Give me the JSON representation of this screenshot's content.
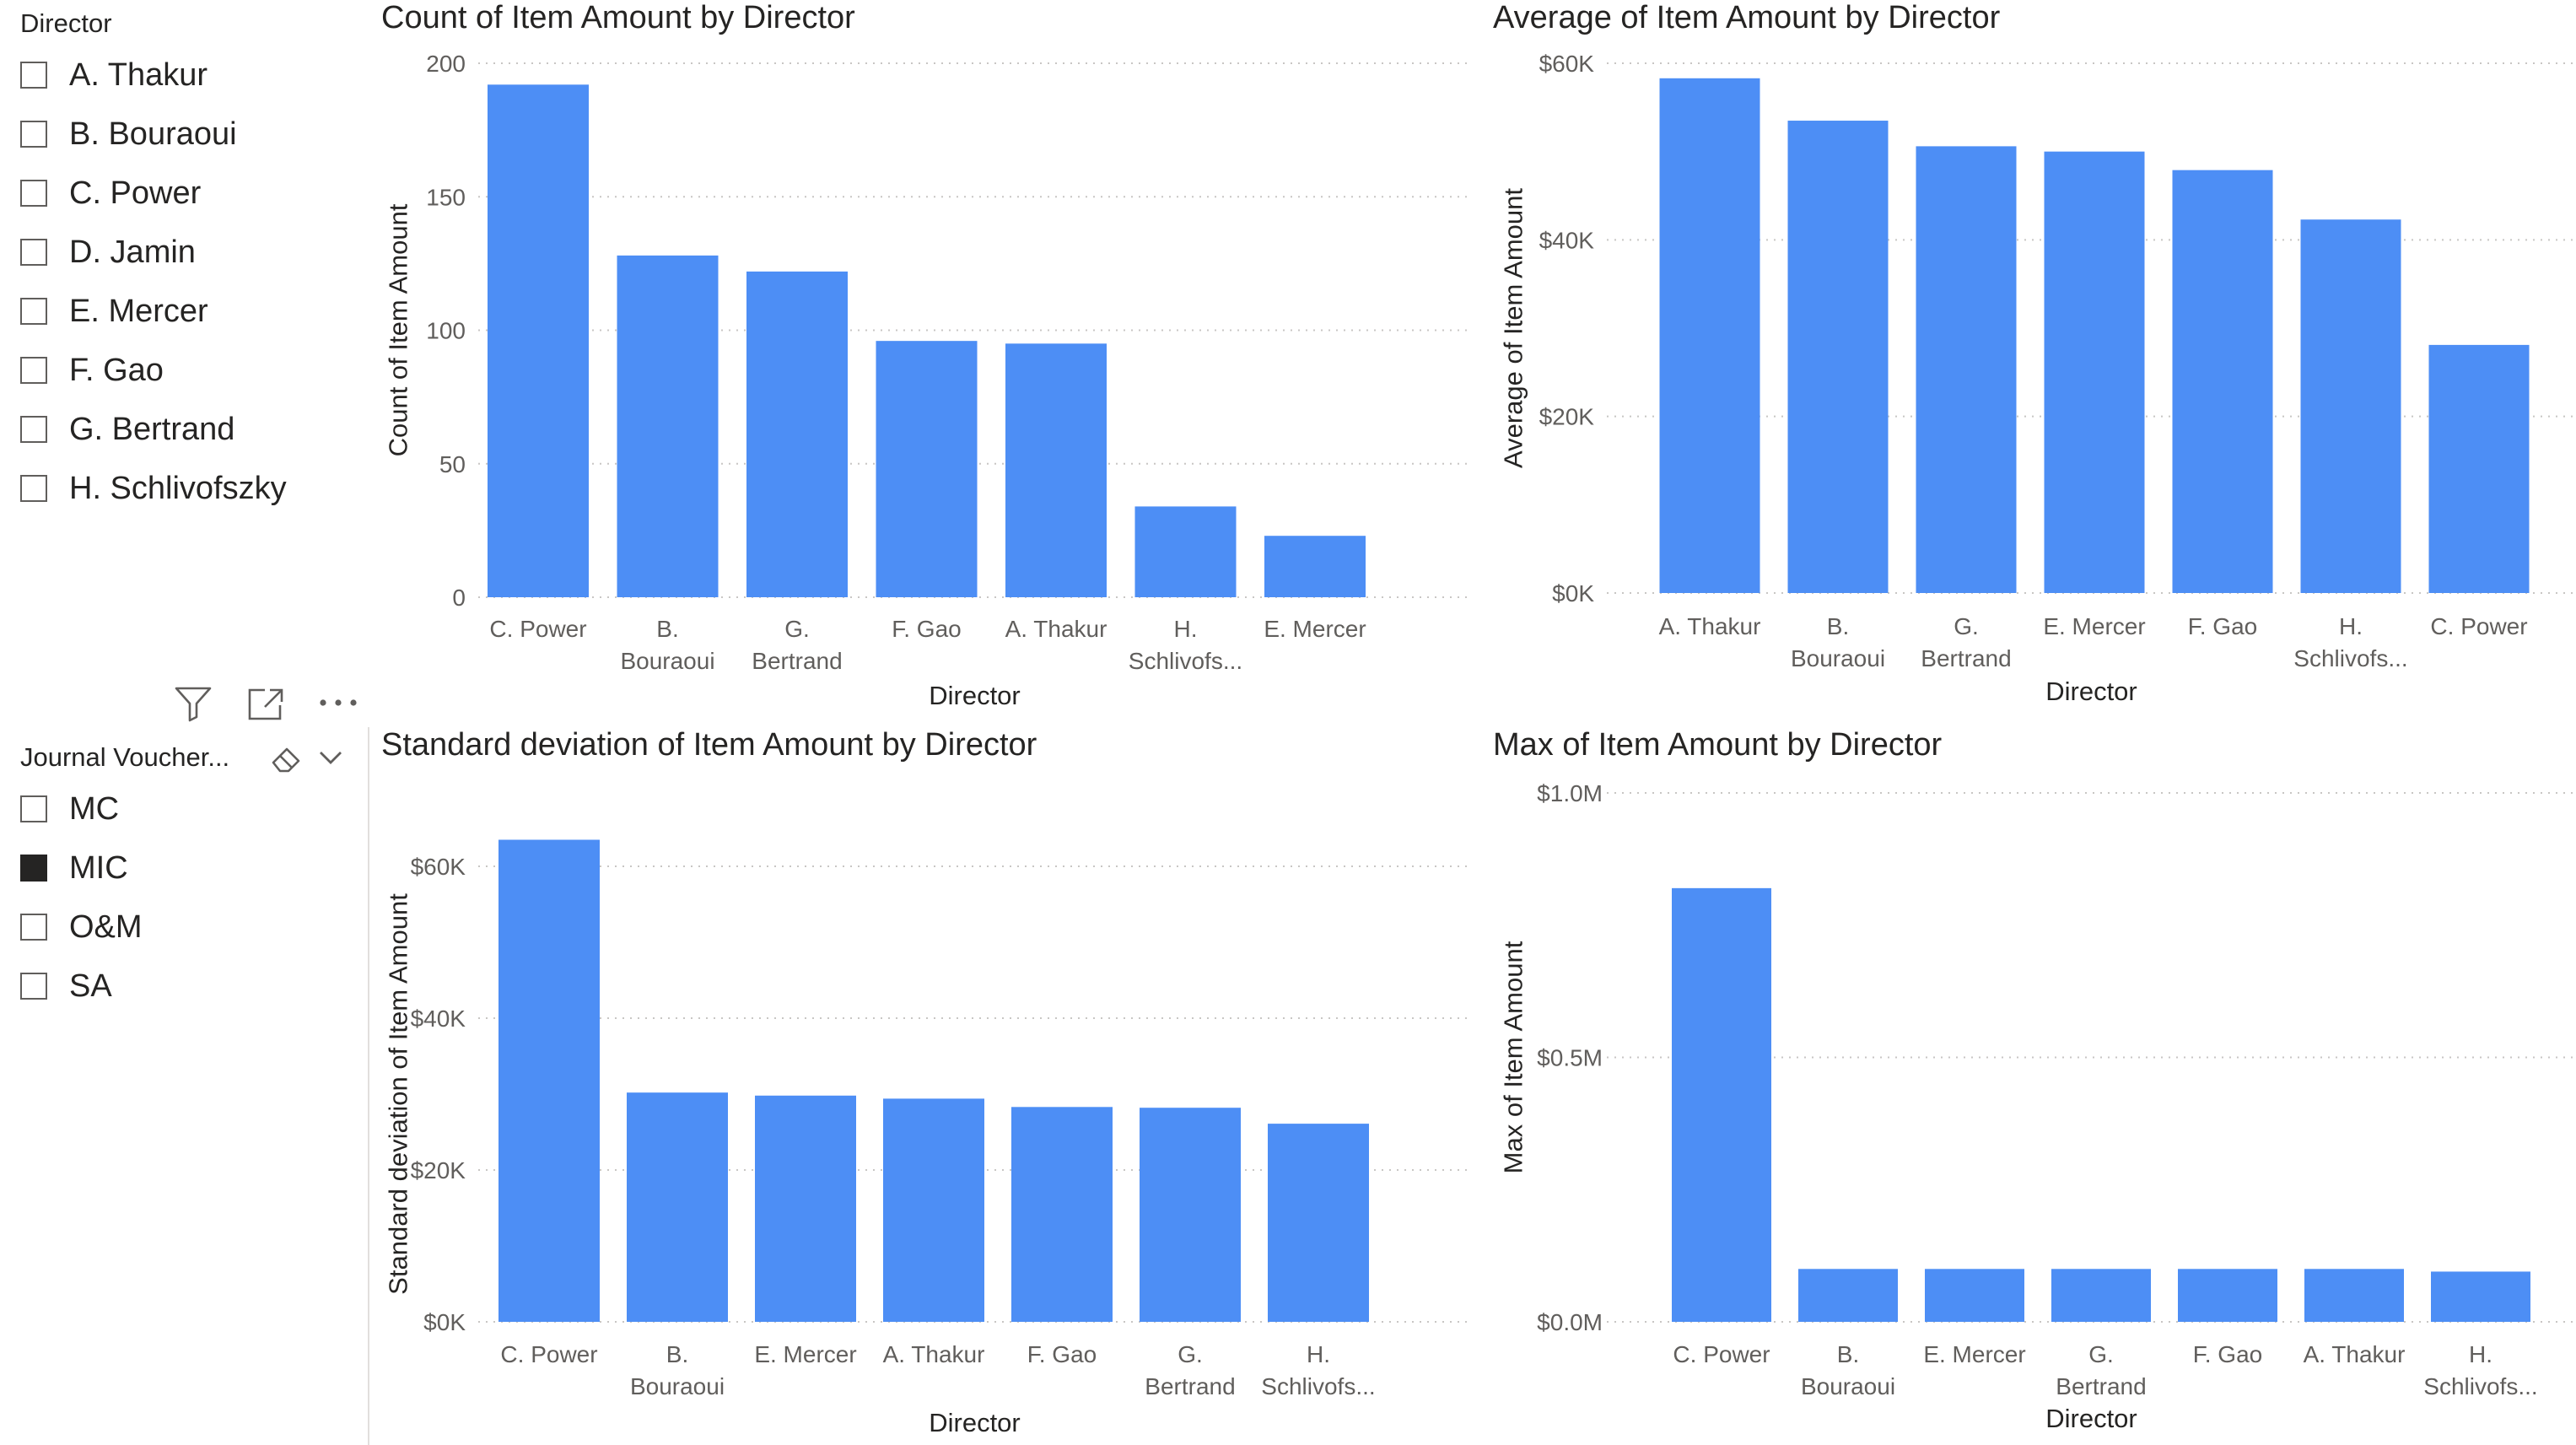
{
  "director_slicer": {
    "title": "Director",
    "items": [
      {
        "label": "A. Thakur",
        "checked": false
      },
      {
        "label": "B. Bouraoui",
        "checked": false
      },
      {
        "label": "C. Power",
        "checked": false
      },
      {
        "label": "D. Jamin",
        "checked": false
      },
      {
        "label": "E. Mercer",
        "checked": false
      },
      {
        "label": "F. Gao",
        "checked": false
      },
      {
        "label": "G. Bertrand",
        "checked": false
      },
      {
        "label": "H. Schlivofszky",
        "checked": false
      }
    ]
  },
  "visual_toolbar": {
    "icons": [
      "filter-icon",
      "focus-mode-icon",
      "more-options-icon"
    ]
  },
  "journal_slicer": {
    "title": "Journal Voucher...",
    "icons": [
      "eraser-icon",
      "chevron-down-icon"
    ],
    "items": [
      {
        "label": "MC",
        "checked": false
      },
      {
        "label": "MIC",
        "checked": true
      },
      {
        "label": "O&M",
        "checked": false
      },
      {
        "label": "SA",
        "checked": false
      }
    ]
  },
  "colors": {
    "bar": "#4d8ef5",
    "gridline": "#c8c6c4",
    "axis_text": "#605e5c",
    "title_text": "#252423",
    "checkbox_border": "#605e5c"
  },
  "chart_data": [
    {
      "type": "bar",
      "title": "Count of Item Amount by Director",
      "xlabel": "Director",
      "ylabel": "Count of Item Amount",
      "categories": [
        "C. Power",
        "B. Bouraoui",
        "G. Bertrand",
        "F. Gao",
        "A. Thakur",
        "H. Schlivofs...",
        "E. Mercer"
      ],
      "values": [
        192,
        128,
        122,
        96,
        95,
        34,
        23
      ],
      "ylim": [
        0,
        200
      ],
      "yticks": [
        0,
        50,
        100,
        150,
        200
      ],
      "ytick_labels": [
        "0",
        "50",
        "100",
        "150",
        "200"
      ],
      "grid": true
    },
    {
      "type": "bar",
      "title": "Average of Item Amount by Director",
      "xlabel": "Director",
      "ylabel": "Average of Item Amount",
      "categories": [
        "A. Thakur",
        "B. Bouraoui",
        "G. Bertrand",
        "E. Mercer",
        "F. Gao",
        "H. Schlivofs...",
        "C. Power"
      ],
      "values": [
        58300,
        53500,
        50600,
        50000,
        47900,
        42300,
        28100
      ],
      "ylim": [
        0,
        60000
      ],
      "yticks": [
        0,
        20000,
        40000,
        60000
      ],
      "ytick_labels": [
        "$0K",
        "$20K",
        "$40K",
        "$60K"
      ],
      "grid": true
    },
    {
      "type": "bar",
      "title": "Standard deviation of Item Amount by Director",
      "xlabel": "Director",
      "ylabel": "Standard deviation of Item Amount",
      "categories": [
        "C. Power",
        "B. Bouraoui",
        "E. Mercer",
        "A. Thakur",
        "F. Gao",
        "G. Bertrand",
        "H. Schlivofs..."
      ],
      "values": [
        63500,
        30200,
        29800,
        29400,
        28300,
        28200,
        26100
      ],
      "ylim": [
        0,
        60000
      ],
      "yticks": [
        0,
        20000,
        40000,
        60000
      ],
      "ytick_labels": [
        "$0K",
        "$20K",
        "$40K",
        "$60K"
      ],
      "grid": true
    },
    {
      "type": "bar",
      "title": "Max of Item Amount by Director",
      "xlabel": "Director",
      "ylabel": "Max of Item Amount",
      "categories": [
        "C. Power",
        "B. Bouraoui",
        "E. Mercer",
        "G. Bertrand",
        "F. Gao",
        "A. Thakur",
        "H. Schlivofs..."
      ],
      "values": [
        820000,
        100000,
        100000,
        100000,
        100000,
        100000,
        95000
      ],
      "ylim": [
        0,
        1000000
      ],
      "yticks": [
        0,
        500000,
        1000000
      ],
      "ytick_labels": [
        "$0.0M",
        "$0.5M",
        "$1.0M"
      ],
      "grid": true
    }
  ]
}
